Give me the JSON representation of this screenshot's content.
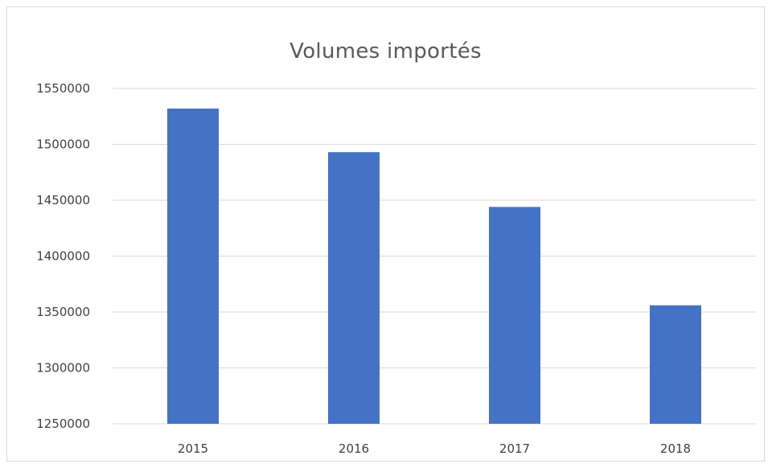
{
  "colors": {
    "bar": "#4472c4",
    "grid": "#d9d9d9",
    "text": "#404040",
    "title": "#595959"
  },
  "chart_data": {
    "type": "bar",
    "title": "Volumes importés",
    "xlabel": "",
    "ylabel": "",
    "categories": [
      "2015",
      "2016",
      "2017",
      "2018"
    ],
    "values": [
      1532000,
      1493000,
      1444000,
      1356000
    ],
    "ylim": [
      1250000,
      1550000
    ],
    "yticks": [
      1250000,
      1300000,
      1350000,
      1400000,
      1450000,
      1500000,
      1550000
    ],
    "ytick_labels": [
      "1250000",
      "1300000",
      "1350000",
      "1400000",
      "1450000",
      "1500000",
      "1550000"
    ],
    "grid": true,
    "legend": "none"
  }
}
